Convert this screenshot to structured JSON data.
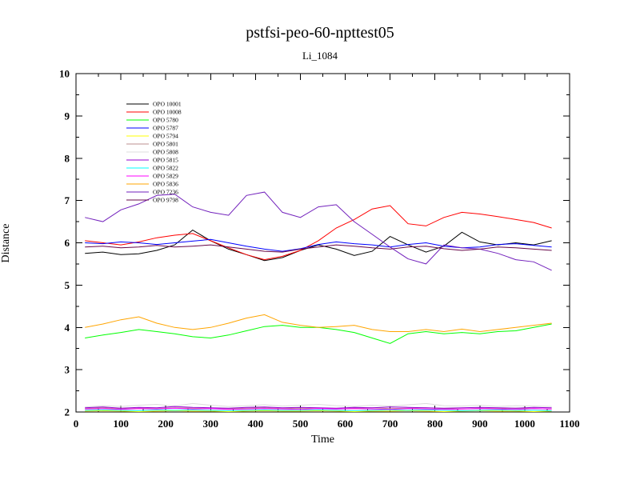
{
  "page": {
    "background": "#ffffff",
    "frame_color": "#000000"
  },
  "chart_data": {
    "type": "line",
    "title": "pstfsi-peo-60-npttest05",
    "subtitle": "Li_1084",
    "xlabel": "Time",
    "ylabel": "Distance",
    "xlim": [
      0,
      1100
    ],
    "ylim": [
      2,
      10
    ],
    "xtick_major": 100,
    "xtick_minor": 50,
    "ytick_major": 1,
    "ytick_minor": 0.5,
    "grid": false,
    "legend_position": "upper-left-inside",
    "x": [
      20,
      60,
      100,
      140,
      180,
      220,
      260,
      300,
      340,
      380,
      420,
      460,
      500,
      540,
      580,
      620,
      660,
      700,
      740,
      780,
      820,
      860,
      900,
      940,
      980,
      1020,
      1060
    ],
    "series": [
      {
        "name": "OPO 10001",
        "color": "#000000",
        "values": [
          5.75,
          5.78,
          5.72,
          5.74,
          5.82,
          5.95,
          6.3,
          6.05,
          5.85,
          5.72,
          5.58,
          5.65,
          5.82,
          5.95,
          5.85,
          5.7,
          5.8,
          6.15,
          5.95,
          5.78,
          5.92,
          6.25,
          6.02,
          5.95,
          6.0,
          5.95,
          6.05
        ]
      },
      {
        "name": "OPO 10008",
        "color": "#ff0000",
        "values": [
          6.05,
          6.0,
          5.95,
          6.02,
          6.12,
          6.18,
          6.22,
          6.05,
          5.88,
          5.72,
          5.6,
          5.68,
          5.82,
          6.05,
          6.35,
          6.55,
          6.8,
          6.88,
          6.45,
          6.4,
          6.6,
          6.72,
          6.68,
          6.62,
          6.55,
          6.48,
          6.35
        ]
      },
      {
        "name": "OPO 5780",
        "color": "#00ff00",
        "values": [
          3.75,
          3.82,
          3.88,
          3.95,
          3.9,
          3.85,
          3.78,
          3.75,
          3.82,
          3.92,
          4.02,
          4.05,
          4.0,
          4.0,
          3.95,
          3.88,
          3.75,
          3.62,
          3.85,
          3.9,
          3.85,
          3.88,
          3.85,
          3.9,
          3.92,
          4.0,
          4.08
        ]
      },
      {
        "name": "OPO 5787",
        "color": "#0000ff",
        "values": [
          6.0,
          5.98,
          6.02,
          6.0,
          5.96,
          6.0,
          6.04,
          6.08,
          6.0,
          5.92,
          5.85,
          5.8,
          5.86,
          5.96,
          6.02,
          5.98,
          5.95,
          5.9,
          5.96,
          6.0,
          5.92,
          5.88,
          5.9,
          5.96,
          5.98,
          5.94,
          5.9
        ]
      },
      {
        "name": "OPO 5794",
        "color": "#ffff00",
        "values": [
          2.02,
          2.03,
          2.02,
          2.01,
          2.02,
          2.03,
          2.02,
          2.02,
          2.01,
          2.02,
          2.03,
          2.02,
          2.02,
          2.03,
          2.02,
          2.01,
          2.02,
          2.02,
          2.03,
          2.02,
          2.01,
          2.02,
          2.03,
          2.02,
          2.02,
          2.01,
          2.02
        ]
      },
      {
        "name": "OPO 5801",
        "color": "#bc8f8f",
        "values": [
          2.08,
          2.1,
          2.07,
          2.09,
          2.08,
          2.1,
          2.09,
          2.08,
          2.07,
          2.09,
          2.1,
          2.08,
          2.09,
          2.08,
          2.07,
          2.09,
          2.1,
          2.08,
          2.09,
          2.1,
          2.08,
          2.07,
          2.09,
          2.08,
          2.09,
          2.08,
          2.07
        ]
      },
      {
        "name": "OPO 5808",
        "color": "#dcdcdc",
        "values": [
          2.12,
          2.15,
          2.13,
          2.16,
          2.18,
          2.14,
          2.2,
          2.16,
          2.13,
          2.15,
          2.17,
          2.14,
          2.16,
          2.18,
          2.15,
          2.13,
          2.16,
          2.14,
          2.17,
          2.2,
          2.15,
          2.14,
          2.16,
          2.13,
          2.15,
          2.14,
          2.13
        ]
      },
      {
        "name": "OPO 5815",
        "color": "#9400d3",
        "values": [
          2.1,
          2.12,
          2.09,
          2.11,
          2.1,
          2.13,
          2.11,
          2.1,
          2.09,
          2.11,
          2.12,
          2.1,
          2.11,
          2.1,
          2.09,
          2.11,
          2.1,
          2.12,
          2.11,
          2.1,
          2.09,
          2.1,
          2.11,
          2.1,
          2.09,
          2.11,
          2.1
        ]
      },
      {
        "name": "OPO 5822",
        "color": "#00ffff",
        "values": [
          2.04,
          2.05,
          2.04,
          2.03,
          2.05,
          2.04,
          2.05,
          2.04,
          2.03,
          2.04,
          2.05,
          2.04,
          2.04,
          2.05,
          2.04,
          2.03,
          2.04,
          2.05,
          2.04,
          2.05,
          2.04,
          2.03,
          2.04,
          2.05,
          2.04,
          2.04,
          2.03
        ]
      },
      {
        "name": "OPO 5829",
        "color": "#ff00ff",
        "values": [
          2.07,
          2.08,
          2.06,
          2.08,
          2.07,
          2.09,
          2.07,
          2.08,
          2.06,
          2.07,
          2.08,
          2.07,
          2.06,
          2.08,
          2.07,
          2.08,
          2.07,
          2.06,
          2.08,
          2.07,
          2.06,
          2.07,
          2.08,
          2.07,
          2.06,
          2.08,
          2.07
        ]
      },
      {
        "name": "OPO 5836",
        "color": "#ffa500",
        "values": [
          4.0,
          4.08,
          4.18,
          4.25,
          4.1,
          4.0,
          3.95,
          4.0,
          4.1,
          4.22,
          4.3,
          4.12,
          4.05,
          4.0,
          4.02,
          4.05,
          3.95,
          3.9,
          3.9,
          3.95,
          3.9,
          3.96,
          3.9,
          3.95,
          4.0,
          4.05,
          4.1
        ]
      },
      {
        "name": "OPO 7236",
        "color": "#7221bc",
        "values": [
          6.6,
          6.5,
          6.78,
          6.92,
          7.12,
          7.15,
          6.85,
          6.72,
          6.65,
          7.12,
          7.2,
          6.72,
          6.6,
          6.85,
          6.9,
          6.5,
          6.2,
          5.9,
          5.62,
          5.5,
          5.95,
          5.88,
          5.85,
          5.75,
          5.6,
          5.55,
          5.35
        ]
      },
      {
        "name": "OPO 9798",
        "color": "#670748",
        "values": [
          5.9,
          5.92,
          5.88,
          5.9,
          5.94,
          5.9,
          5.92,
          5.95,
          5.9,
          5.85,
          5.8,
          5.78,
          5.85,
          5.9,
          5.95,
          5.92,
          5.88,
          5.85,
          5.9,
          5.92,
          5.86,
          5.82,
          5.85,
          5.9,
          5.88,
          5.85,
          5.82
        ]
      }
    ]
  }
}
